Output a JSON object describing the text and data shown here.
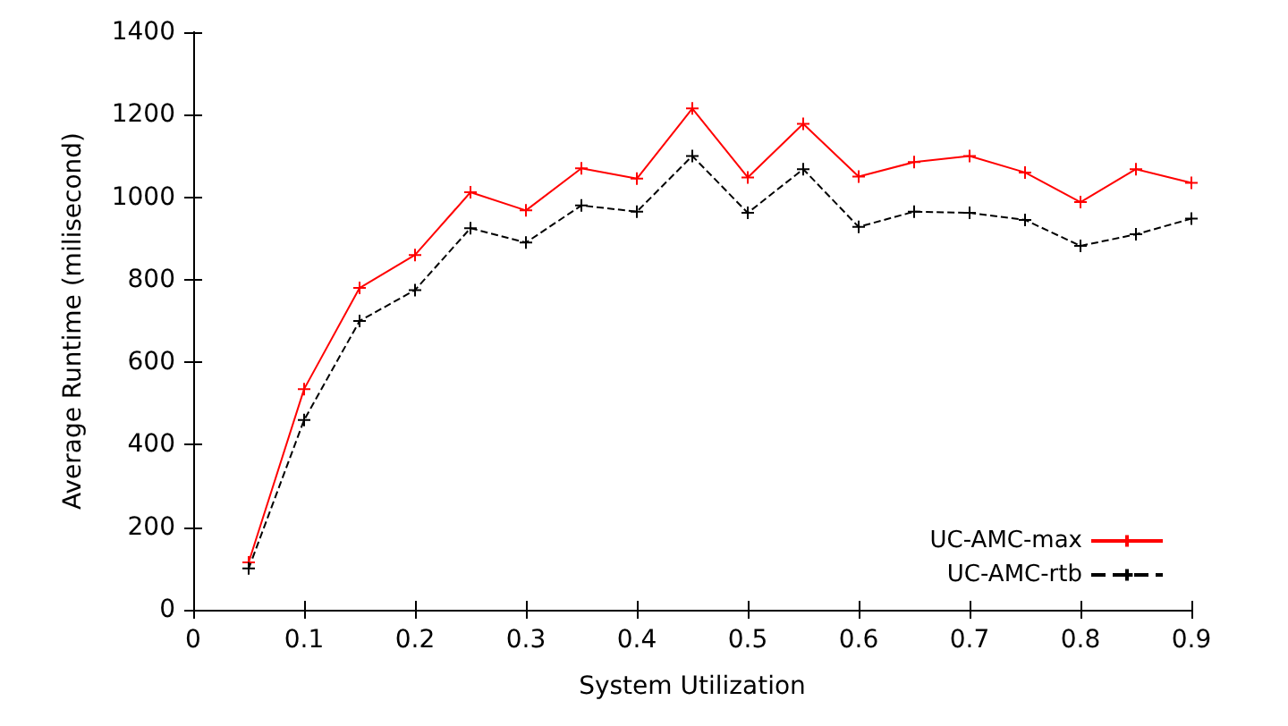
{
  "chart_data": {
    "type": "line",
    "xlabel": "System Utilization",
    "ylabel": "Average Runtime (milisecond)",
    "x": [
      0.05,
      0.1,
      0.15,
      0.2,
      0.25,
      0.3,
      0.35,
      0.4,
      0.45,
      0.5,
      0.55,
      0.6,
      0.65,
      0.7,
      0.75,
      0.8,
      0.85,
      0.9
    ],
    "series": [
      {
        "name": "UC-AMC-max",
        "color": "#ff0000",
        "marker": "cross",
        "line_style": "solid",
        "values": [
          115,
          535,
          780,
          860,
          1012,
          968,
          1070,
          1045,
          1215,
          1048,
          1178,
          1050,
          1085,
          1100,
          1060,
          988,
          1068,
          1035
        ]
      },
      {
        "name": "UC-AMC-rtb",
        "color": "#000000",
        "marker": "cross",
        "line_style": "dashed",
        "values": [
          100,
          460,
          700,
          775,
          925,
          890,
          980,
          965,
          1100,
          962,
          1068,
          928,
          965,
          962,
          945,
          882,
          910,
          948
        ]
      }
    ],
    "xlim": [
      0,
      0.9
    ],
    "xticks": [
      0,
      0.1,
      0.2,
      0.3,
      0.4,
      0.5,
      0.6,
      0.7,
      0.8,
      0.9
    ],
    "ylim": [
      0,
      1400
    ],
    "yticks": [
      0,
      200,
      400,
      600,
      800,
      1000,
      1200,
      1400
    ],
    "grid": false,
    "legend": "bottom right"
  }
}
